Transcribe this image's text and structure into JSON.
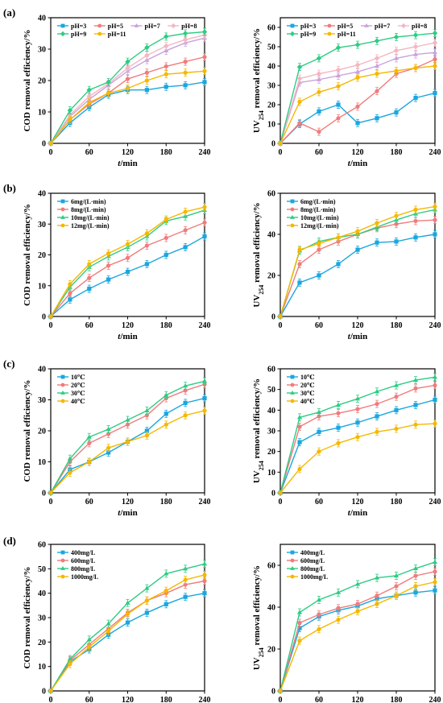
{
  "panel_labels": [
    "(a)",
    "(b)",
    "(c)",
    "(d)"
  ],
  "chart_data": [
    {
      "id": "a-cod",
      "type": "line",
      "xlabel": "t/min",
      "ylabel": "COD removal efficiency/%",
      "xlim": [
        0,
        240
      ],
      "xticks": [
        0,
        60,
        120,
        180,
        240
      ],
      "ylim": [
        0,
        40
      ],
      "yticks": [
        0,
        10,
        20,
        30,
        40
      ],
      "legend": {
        "placement": "top-left",
        "columns": 4
      },
      "x": [
        0,
        30,
        60,
        90,
        120,
        150,
        180,
        210,
        240
      ],
      "series": [
        {
          "name": "pH=3",
          "color": "#1aa7df",
          "marker": "square",
          "values": [
            0,
            6.5,
            11.5,
            15.5,
            17,
            17,
            18,
            18.5,
            19.5
          ]
        },
        {
          "name": "pH=5",
          "color": "#f07c7c",
          "marker": "circle",
          "values": [
            0,
            7.5,
            12.5,
            16,
            20.5,
            22.5,
            24.5,
            26,
            27.5
          ]
        },
        {
          "name": "pH=7",
          "color": "#c9a2dc",
          "marker": "triangle",
          "values": [
            0,
            8.5,
            14,
            18.5,
            23,
            26.5,
            29.5,
            32,
            33.5
          ]
        },
        {
          "name": "pH=8",
          "color": "#f4b6c2",
          "marker": "diamond",
          "values": [
            0,
            9,
            15,
            19,
            24,
            28,
            31,
            33,
            34.5
          ]
        },
        {
          "name": "pH=9",
          "color": "#2ecc84",
          "marker": "diamond",
          "values": [
            0,
            10.5,
            17,
            19.5,
            26,
            30.5,
            34,
            35,
            35.5
          ]
        },
        {
          "name": "pH=11",
          "color": "#f5b800",
          "marker": "circle",
          "values": [
            0,
            7.5,
            13,
            16,
            17.5,
            20,
            22,
            22.5,
            23
          ]
        }
      ]
    },
    {
      "id": "a-uv",
      "type": "line",
      "xlabel": "t/min",
      "ylabel_main": "UV",
      "ylabel_sub": "254",
      "ylabel_tail": " removal efficiency/%",
      "xlim": [
        0,
        240
      ],
      "xticks": [
        0,
        60,
        120,
        180,
        240
      ],
      "ylim": [
        0,
        65
      ],
      "yticks": [
        0,
        10,
        20,
        30,
        40,
        50,
        60
      ],
      "legend": {
        "placement": "top-left",
        "columns": 4
      },
      "x": [
        0,
        30,
        60,
        90,
        120,
        150,
        180,
        210,
        240
      ],
      "series": [
        {
          "name": "pH=3",
          "color": "#1aa7df",
          "marker": "square",
          "values": [
            0,
            10,
            16.5,
            20,
            10.5,
            13,
            16,
            23.5,
            26
          ]
        },
        {
          "name": "pH=5",
          "color": "#f07c7c",
          "marker": "circle",
          "values": [
            0,
            10.5,
            6,
            13,
            19,
            27,
            36,
            39,
            43.5
          ]
        },
        {
          "name": "pH=7",
          "color": "#c9a2dc",
          "marker": "triangle",
          "values": [
            0,
            31.5,
            33,
            35,
            37,
            40,
            44,
            46,
            47
          ]
        },
        {
          "name": "pH=8",
          "color": "#f4b6c2",
          "marker": "diamond",
          "values": [
            0,
            33.5,
            36,
            38,
            40.5,
            44,
            48,
            50,
            52
          ]
        },
        {
          "name": "pH=9",
          "color": "#2ecc84",
          "marker": "diamond",
          "values": [
            0,
            39.5,
            44,
            49.5,
            51,
            53,
            55,
            56,
            57
          ]
        },
        {
          "name": "pH=11",
          "color": "#f5b800",
          "marker": "circle",
          "values": [
            0,
            21.5,
            26.5,
            29.5,
            34,
            36,
            37.5,
            39,
            40
          ]
        }
      ]
    },
    {
      "id": "b-cod",
      "type": "line",
      "xlabel": "t/min",
      "ylabel": "COD removal efficiency/%",
      "xlim": [
        0,
        240
      ],
      "xticks": [
        0,
        60,
        120,
        180,
        240
      ],
      "ylim": [
        0,
        40
      ],
      "yticks": [
        0,
        10,
        20,
        30,
        40
      ],
      "legend": {
        "placement": "top-left",
        "columns": 1
      },
      "x": [
        0,
        30,
        60,
        90,
        120,
        150,
        180,
        210,
        240
      ],
      "series": [
        {
          "name": "6mg/(L·min)",
          "color": "#1aa7df",
          "marker": "square",
          "values": [
            0,
            5.5,
            9,
            12,
            14.5,
            17,
            20,
            22.5,
            26
          ]
        },
        {
          "name": "8mg/(L·min)",
          "color": "#f07c7c",
          "marker": "circle",
          "values": [
            0,
            7.5,
            12.5,
            16.5,
            19,
            23,
            25.5,
            28,
            30.5
          ]
        },
        {
          "name": "10mg/(L·min)",
          "color": "#2ecc84",
          "marker": "triangle",
          "values": [
            0,
            9.5,
            16,
            19.5,
            22.5,
            26,
            31,
            32.5,
            34.5
          ]
        },
        {
          "name": "12mg/(L·min)",
          "color": "#f5b800",
          "marker": "circle",
          "values": [
            0,
            10.5,
            17,
            20.5,
            23.5,
            27,
            31.5,
            34,
            35.5
          ]
        }
      ]
    },
    {
      "id": "b-uv",
      "type": "line",
      "xlabel": "t/min",
      "ylabel_main": "UV",
      "ylabel_sub": "254",
      "ylabel_tail": " removal efficiency/%",
      "xlim": [
        0,
        240
      ],
      "xticks": [
        0,
        60,
        120,
        180,
        240
      ],
      "ylim": [
        0,
        60
      ],
      "yticks": [
        0,
        20,
        40,
        60
      ],
      "legend": {
        "placement": "top-left",
        "columns": 1
      },
      "x": [
        0,
        30,
        60,
        90,
        120,
        150,
        180,
        210,
        240
      ],
      "series": [
        {
          "name": "6mg/(L·min)",
          "color": "#1aa7df",
          "marker": "square",
          "values": [
            0,
            16.5,
            20,
            25.5,
            32.5,
            36,
            36.5,
            38.5,
            40
          ]
        },
        {
          "name": "8mg/(L·min)",
          "color": "#f07c7c",
          "marker": "circle",
          "values": [
            0,
            25.5,
            32.5,
            36.5,
            40,
            43,
            45,
            46.5,
            47
          ]
        },
        {
          "name": "10mg/(L·min)",
          "color": "#2ecc84",
          "marker": "triangle",
          "values": [
            0,
            32,
            36.5,
            38.5,
            40,
            43.5,
            47,
            50,
            52
          ]
        },
        {
          "name": "12mg/(L·min)",
          "color": "#f5b800",
          "marker": "circle",
          "values": [
            0,
            32.5,
            35.5,
            38.5,
            41.5,
            45.5,
            49,
            52,
            53.5
          ]
        }
      ]
    },
    {
      "id": "c-cod",
      "type": "line",
      "xlabel": "t/min",
      "ylabel": "COD removal efficiency/%",
      "xlim": [
        0,
        240
      ],
      "xticks": [
        0,
        60,
        120,
        180,
        240
      ],
      "ylim": [
        0,
        40
      ],
      "yticks": [
        0,
        10,
        20,
        30,
        40
      ],
      "legend": {
        "placement": "top-left",
        "columns": 1
      },
      "x": [
        0,
        30,
        60,
        90,
        120,
        150,
        180,
        210,
        240
      ],
      "series": [
        {
          "name": "10℃",
          "color": "#1aa7df",
          "marker": "square",
          "values": [
            0,
            7.5,
            10,
            13,
            16.5,
            20,
            25.5,
            29,
            30.5
          ]
        },
        {
          "name": "20℃",
          "color": "#f07c7c",
          "marker": "circle",
          "values": [
            0,
            10,
            16,
            19,
            22,
            25,
            30.5,
            33,
            35
          ]
        },
        {
          "name": "30℃",
          "color": "#2ecc84",
          "marker": "triangle",
          "values": [
            0,
            11,
            18,
            20.5,
            23.5,
            26.5,
            31.5,
            34.5,
            36
          ]
        },
        {
          "name": "40℃",
          "color": "#f5b800",
          "marker": "circle",
          "values": [
            0,
            6.5,
            10,
            14.5,
            16.5,
            18.5,
            22,
            25,
            26.5
          ]
        }
      ]
    },
    {
      "id": "c-uv",
      "type": "line",
      "xlabel": "t/min",
      "ylabel_main": "UV",
      "ylabel_sub": "254",
      "ylabel_tail": " removal efficiency/%",
      "xlim": [
        0,
        240
      ],
      "xticks": [
        0,
        60,
        120,
        180,
        240
      ],
      "ylim": [
        0,
        60
      ],
      "yticks": [
        0,
        10,
        20,
        30,
        40,
        50,
        60
      ],
      "legend": {
        "placement": "top-left",
        "columns": 1
      },
      "x": [
        0,
        30,
        60,
        90,
        120,
        150,
        180,
        210,
        240
      ],
      "series": [
        {
          "name": "10℃",
          "color": "#1aa7df",
          "marker": "square",
          "values": [
            0,
            24.5,
            29.5,
            31.5,
            34,
            37,
            40,
            42.5,
            45
          ]
        },
        {
          "name": "20℃",
          "color": "#f07c7c",
          "marker": "circle",
          "values": [
            0,
            32,
            37,
            38.5,
            40.5,
            43,
            46.5,
            50.5,
            52
          ]
        },
        {
          "name": "30℃",
          "color": "#2ecc84",
          "marker": "triangle",
          "values": [
            0,
            36.5,
            39,
            42.5,
            45.5,
            49,
            52,
            54.5,
            56
          ]
        },
        {
          "name": "40℃",
          "color": "#f5b800",
          "marker": "circle",
          "values": [
            0,
            11.5,
            20,
            24,
            27,
            29.5,
            31,
            33,
            33.5
          ]
        }
      ]
    },
    {
      "id": "d-cod",
      "type": "line",
      "xlabel": "t/min",
      "ylabel": "COD removal efficiency/%",
      "xlim": [
        0,
        240
      ],
      "xticks": [
        0,
        60,
        120,
        180,
        240
      ],
      "ylim": [
        0,
        60
      ],
      "yticks": [
        0,
        10,
        20,
        30,
        40,
        50,
        60
      ],
      "legend": {
        "placement": "top-left",
        "columns": 1
      },
      "x": [
        0,
        30,
        60,
        90,
        120,
        150,
        180,
        210,
        240
      ],
      "series": [
        {
          "name": "400mg/L",
          "color": "#1aa7df",
          "marker": "square",
          "values": [
            0,
            12,
            17,
            23,
            28,
            32,
            35.5,
            38.5,
            40
          ]
        },
        {
          "name": "600mg/L",
          "color": "#f07c7c",
          "marker": "circle",
          "values": [
            0,
            12.5,
            19,
            25.5,
            32,
            37,
            40,
            43.5,
            45
          ]
        },
        {
          "name": "800mg/L",
          "color": "#2ecc84",
          "marker": "triangle",
          "values": [
            0,
            13,
            21,
            27.5,
            36,
            42,
            48,
            50,
            52
          ]
        },
        {
          "name": "1000mg/L",
          "color": "#f5b800",
          "marker": "circle",
          "values": [
            0,
            11,
            18,
            24.5,
            31.5,
            37,
            41,
            45.5,
            47.5
          ]
        }
      ]
    },
    {
      "id": "d-uv",
      "type": "line",
      "xlabel": "t/min",
      "ylabel_main": "UV",
      "ylabel_sub": "254",
      "ylabel_tail": " removal efficiency/%",
      "xlim": [
        0,
        240
      ],
      "xticks": [
        0,
        60,
        120,
        180,
        240
      ],
      "ylim": [
        0,
        70
      ],
      "yticks": [
        0,
        20,
        40,
        60
      ],
      "legend": {
        "placement": "top-left",
        "columns": 1
      },
      "x": [
        0,
        30,
        60,
        90,
        120,
        150,
        180,
        210,
        240
      ],
      "series": [
        {
          "name": "400mg/L",
          "color": "#1aa7df",
          "marker": "square",
          "values": [
            0,
            30,
            35.5,
            38.5,
            40.5,
            44,
            45.5,
            47,
            48
          ]
        },
        {
          "name": "600mg/L",
          "color": "#f07c7c",
          "marker": "circle",
          "values": [
            0,
            32.5,
            36.5,
            39.5,
            41.5,
            45.5,
            50,
            55,
            57
          ]
        },
        {
          "name": "800mg/L",
          "color": "#2ecc84",
          "marker": "triangle",
          "values": [
            0,
            37.5,
            43.5,
            47,
            51,
            54,
            55,
            58.5,
            61.5
          ]
        },
        {
          "name": "1000mg/L",
          "color": "#f5b800",
          "marker": "circle",
          "values": [
            0,
            24,
            29.5,
            34,
            38,
            41.5,
            45.5,
            50,
            52
          ]
        }
      ]
    }
  ]
}
